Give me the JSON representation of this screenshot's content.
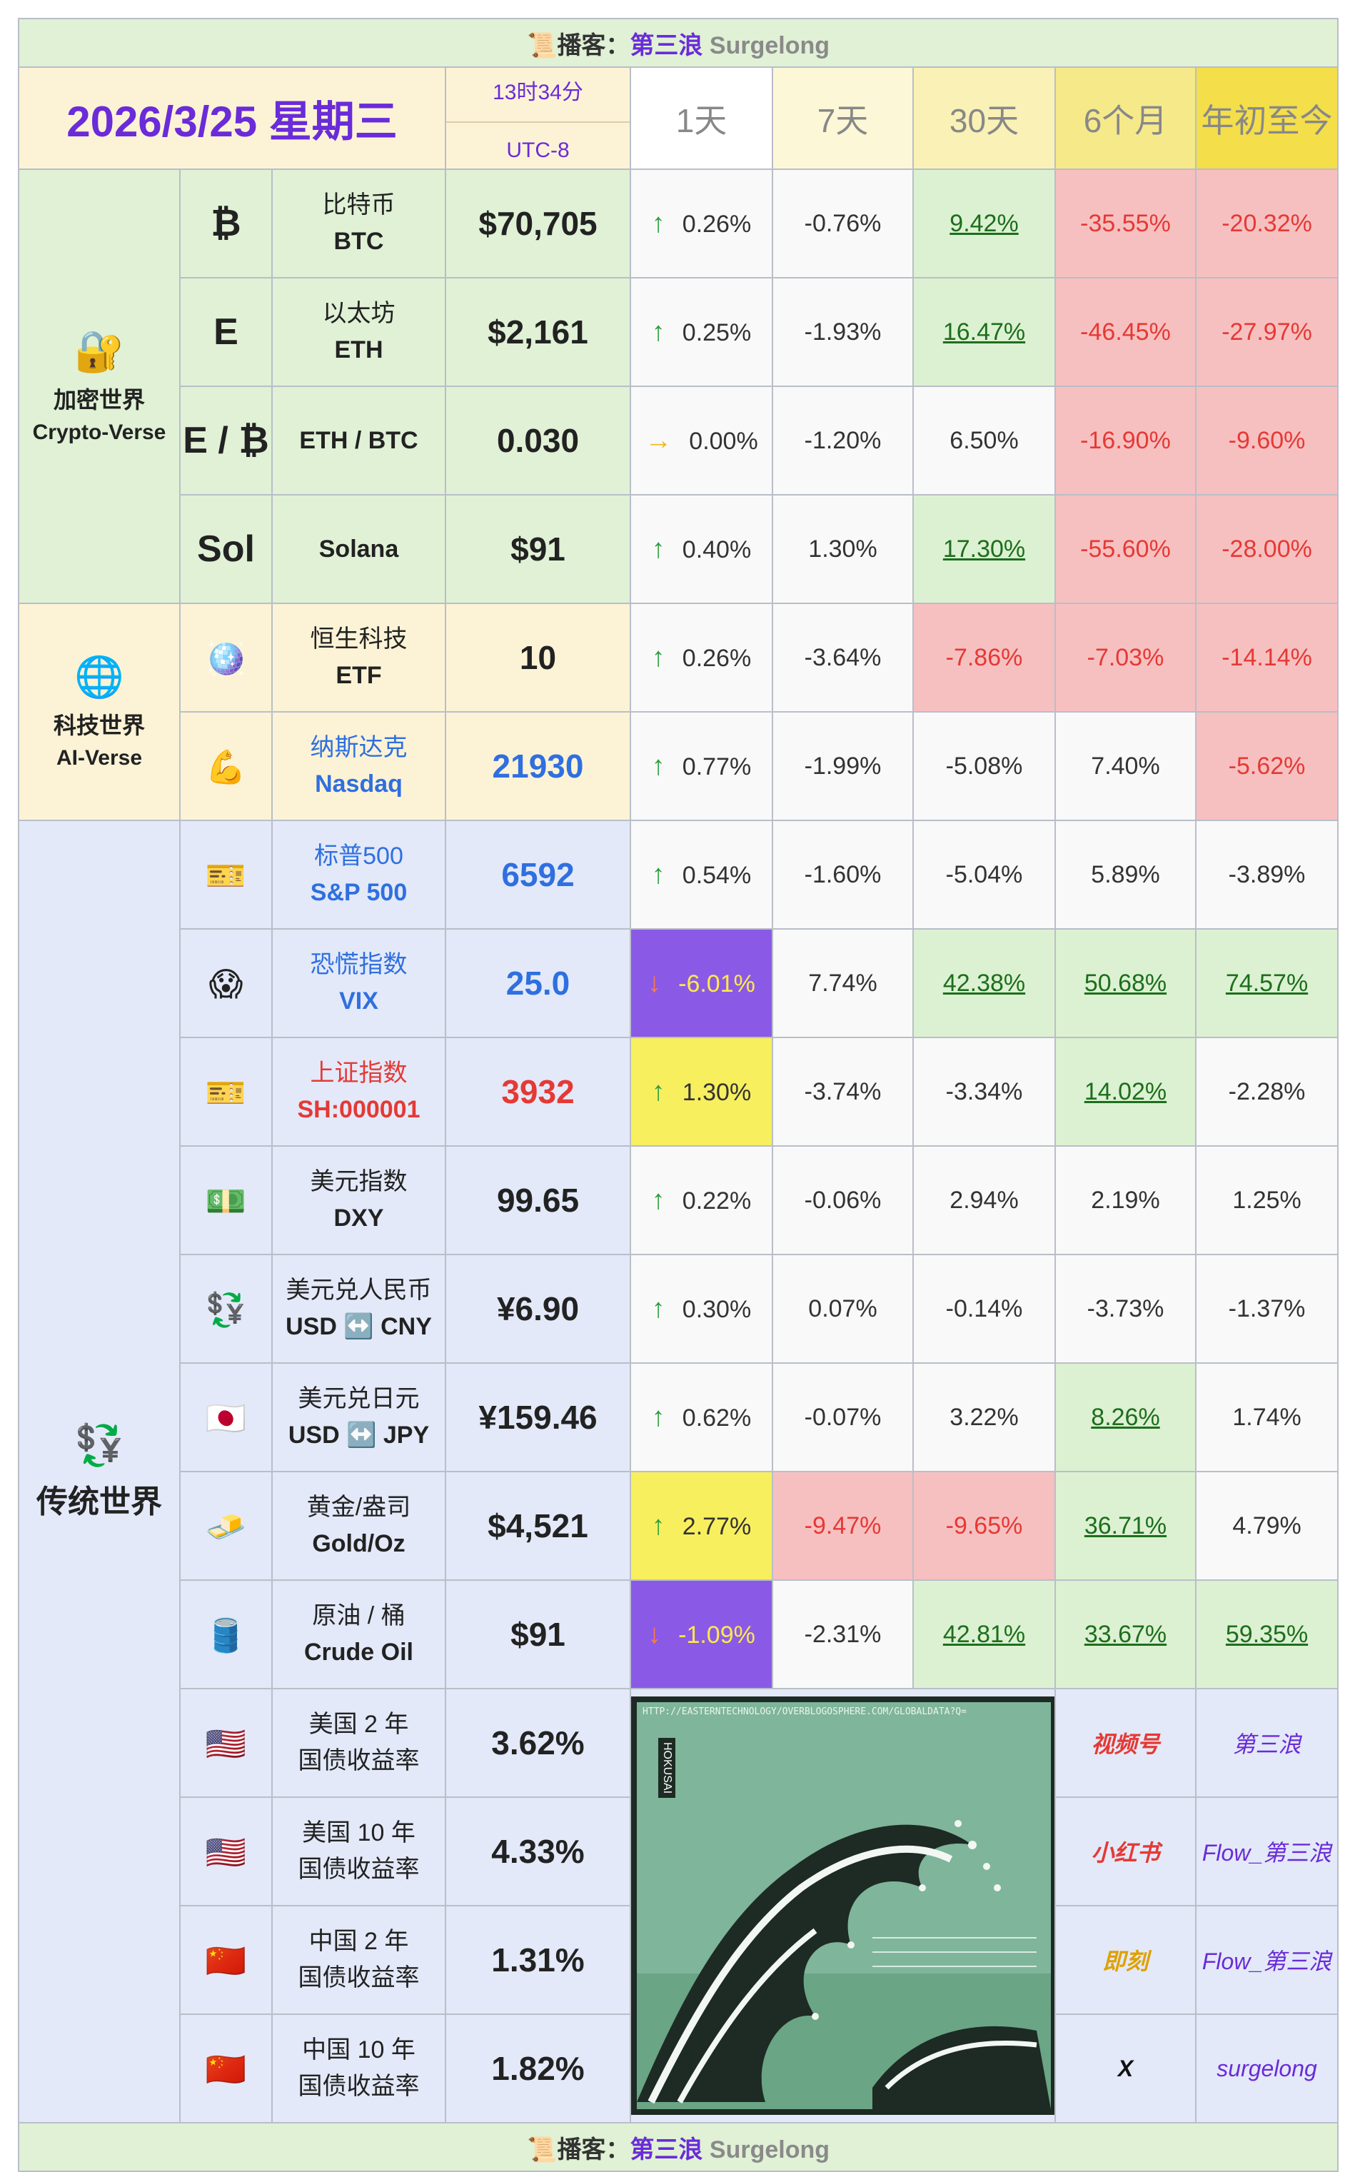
{
  "banner": {
    "icon": "📜",
    "label": "播客：",
    "name": "第三浪",
    "handle": "Surgelong"
  },
  "header": {
    "date": "2026/3/25 星期三",
    "time": "13时34分",
    "timezone": "UTC-8",
    "columns": [
      "1天",
      "7天",
      "30天",
      "6个月",
      "年初至今"
    ],
    "column_colors": [
      "#ffffff",
      "#fcf7d6",
      "#faf1b6",
      "#f6e98a",
      "#f4de4a"
    ]
  },
  "cell_styles": {
    "plain": {
      "bg": "#f9f9f9",
      "fg": "#333333"
    },
    "green": {
      "bg": "#dcf1d2",
      "fg": "#1d6e1d",
      "underline": true
    },
    "red": {
      "bg": "#f7c0c0",
      "fg": "#e53935"
    },
    "yellow": {
      "bg": "#f7ef5e",
      "fg": "#333333"
    },
    "purple": {
      "bg": "#8a5ae6",
      "fg": "#ffe94a"
    }
  },
  "groups": [
    {
      "icon": "🔐",
      "name": "加密世界",
      "name_en": "Crypto-Verse",
      "color": "#e0f1d6",
      "rows": [
        {
          "symbol": "₿",
          "name": "比特币",
          "code": "BTC",
          "price": "$70,705",
          "trend": "↑",
          "trend_color": "#2e9e3e",
          "changes": [
            "0.26%",
            "-0.76%",
            "9.42%",
            "-35.55%",
            "-20.32%"
          ],
          "styles": [
            "plain",
            "plain",
            "green",
            "red",
            "red"
          ]
        },
        {
          "symbol": "E",
          "name": "以太坊",
          "code": "ETH",
          "price": "$2,161",
          "trend": "↑",
          "trend_color": "#2e9e3e",
          "changes": [
            "0.25%",
            "-1.93%",
            "16.47%",
            "-46.45%",
            "-27.97%"
          ],
          "styles": [
            "plain",
            "plain",
            "green",
            "red",
            "red"
          ]
        },
        {
          "symbol": "E / ₿",
          "code": "ETH / BTC",
          "price": "0.030",
          "trend": "→",
          "trend_color": "#f2b71c",
          "changes": [
            "0.00%",
            "-1.20%",
            "6.50%",
            "-16.90%",
            "-9.60%"
          ],
          "styles": [
            "plain",
            "plain",
            "plain",
            "red",
            "red"
          ]
        },
        {
          "symbol": "Sol",
          "code": "Solana",
          "price": "$91",
          "trend": "↑",
          "trend_color": "#2e9e3e",
          "changes": [
            "0.40%",
            "1.30%",
            "17.30%",
            "-55.60%",
            "-28.00%"
          ],
          "styles": [
            "plain",
            "plain",
            "green",
            "red",
            "red"
          ]
        }
      ]
    },
    {
      "icon": "🌐",
      "name": "科技世界",
      "name_en": "AI-Verse",
      "color": "#fcf3d6",
      "rows": [
        {
          "icon": "🪩",
          "name": "恒生科技",
          "code": "ETF",
          "price": "10",
          "trend": "↑",
          "trend_color": "#2e9e3e",
          "changes": [
            "0.26%",
            "-3.64%",
            "-7.86%",
            "-7.03%",
            "-14.14%"
          ],
          "styles": [
            "plain",
            "plain",
            "red",
            "red",
            "red"
          ]
        },
        {
          "icon": "💪",
          "name": "纳斯达克",
          "code": "Nasdaq",
          "price": "21930",
          "name_color": "#2f6fe0",
          "trend": "↑",
          "trend_color": "#2e9e3e",
          "changes": [
            "0.77%",
            "-1.99%",
            "-5.08%",
            "7.40%",
            "-5.62%"
          ],
          "styles": [
            "plain",
            "plain",
            "plain",
            "plain",
            "red"
          ]
        }
      ]
    },
    {
      "icon": "💱",
      "name": "传统世界",
      "color": "#e3e9f8",
      "rows": [
        {
          "icon": "🎫",
          "name": "标普500",
          "code": "S&P 500",
          "price": "6592",
          "name_color": "#2f6fe0",
          "trend": "↑",
          "trend_color": "#2e9e3e",
          "changes": [
            "0.54%",
            "-1.60%",
            "-5.04%",
            "5.89%",
            "-3.89%"
          ],
          "styles": [
            "plain",
            "plain",
            "plain",
            "plain",
            "plain"
          ]
        },
        {
          "icon": "😱",
          "name": "恐慌指数",
          "code": "VIX",
          "price": "25.0",
          "name_color": "#2f6fe0",
          "trend": "↓",
          "trend_color": "#ff7a45",
          "changes": [
            "-6.01%",
            "7.74%",
            "42.38%",
            "50.68%",
            "74.57%"
          ],
          "styles": [
            "purple",
            "plain",
            "green",
            "green",
            "green"
          ]
        },
        {
          "icon": "🎫",
          "name": "上证指数",
          "code": "SH:000001",
          "price": "3932",
          "name_color": "#e53935",
          "trend": "↑",
          "trend_color": "#2e9e3e",
          "changes": [
            "1.30%",
            "-3.74%",
            "-3.34%",
            "14.02%",
            "-2.28%"
          ],
          "styles": [
            "yellow",
            "plain",
            "plain",
            "green",
            "plain"
          ]
        },
        {
          "icon": "💵",
          "name": "美元指数",
          "code": "DXY",
          "price": "99.65",
          "trend": "↑",
          "trend_color": "#2e9e3e",
          "changes": [
            "0.22%",
            "-0.06%",
            "2.94%",
            "2.19%",
            "1.25%"
          ],
          "styles": [
            "plain",
            "plain",
            "plain",
            "plain",
            "plain"
          ]
        },
        {
          "icon": "💱",
          "name": "美元兑人民币",
          "code": "USD ↔️ CNY",
          "price": "¥6.90",
          "trend": "↑",
          "trend_color": "#2e9e3e",
          "changes": [
            "0.30%",
            "0.07%",
            "-0.14%",
            "-3.73%",
            "-1.37%"
          ],
          "styles": [
            "plain",
            "plain",
            "plain",
            "plain",
            "plain"
          ]
        },
        {
          "icon": "🇯🇵",
          "name": "美元兑日元",
          "code": "USD ↔️ JPY",
          "price": "¥159.46",
          "trend": "↑",
          "trend_color": "#2e9e3e",
          "changes": [
            "0.62%",
            "-0.07%",
            "3.22%",
            "8.26%",
            "1.74%"
          ],
          "styles": [
            "plain",
            "plain",
            "plain",
            "green",
            "plain"
          ]
        },
        {
          "icon": "🧈",
          "name": "黄金/盎司",
          "code": "Gold/Oz",
          "price": "$4,521",
          "trend": "↑",
          "trend_color": "#2e9e3e",
          "changes": [
            "2.77%",
            "-9.47%",
            "-9.65%",
            "36.71%",
            "4.79%"
          ],
          "styles": [
            "yellow",
            "red",
            "red",
            "green",
            "plain"
          ]
        },
        {
          "icon": "🛢️",
          "name": "原油 / 桶",
          "code": "Crude Oil",
          "price": "$91",
          "trend": "↓",
          "trend_color": "#ff7a45",
          "changes": [
            "-1.09%",
            "-2.31%",
            "42.81%",
            "33.67%",
            "59.35%"
          ],
          "styles": [
            "purple",
            "plain",
            "green",
            "green",
            "green"
          ]
        },
        {
          "icon": "🇺🇸",
          "name": "美国 2 年",
          "subname": "国债收益率",
          "price": "3.62%"
        },
        {
          "icon": "🇺🇸",
          "name": "美国 10 年",
          "subname": "国债收益率",
          "price": "4.33%"
        },
        {
          "icon": "🇨🇳",
          "name": "中国 2 年",
          "subname": "国债收益率",
          "price": "1.31%"
        },
        {
          "icon": "🇨🇳",
          "name": "中国 10 年",
          "subname": "国债收益率",
          "price": "1.82%"
        }
      ]
    }
  ],
  "image": {
    "caption": "HTTP://EASTERNTECHNOLOGY/OVERBLOGOSPHERE.COM/GLOBALDATA?Q=",
    "label": "HOKUSAI"
  },
  "social": [
    {
      "platform": "视频号",
      "platform_color": "#e53935",
      "handle": "第三浪"
    },
    {
      "platform": "小红书",
      "platform_color": "#e53935",
      "handle": "Flow_第三浪"
    },
    {
      "platform": "即刻",
      "platform_color": "#e0a000",
      "handle": "Flow_第三浪"
    },
    {
      "platform": "X",
      "platform_color": "#111111",
      "handle": "surgelong"
    }
  ]
}
